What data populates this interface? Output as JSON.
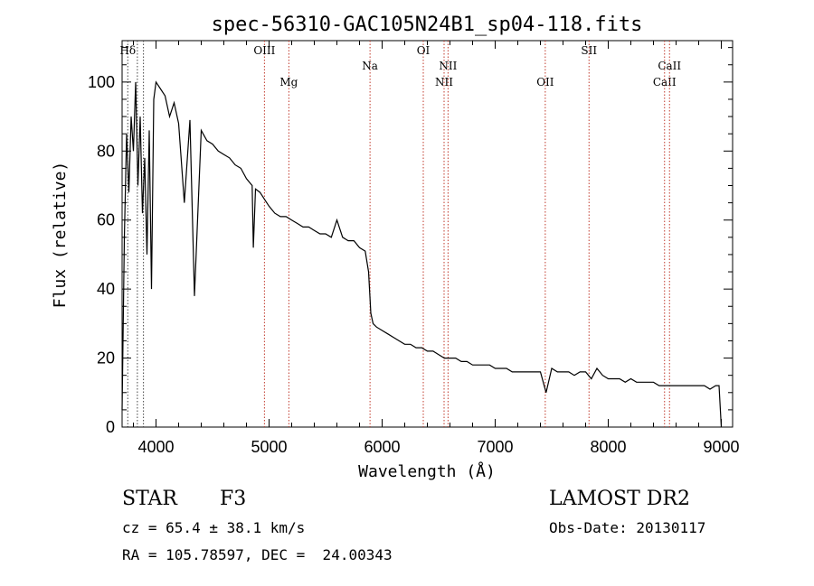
{
  "chart_data": {
    "type": "line",
    "title": "spec-56310-GAC105N24B1_sp04-118.fits",
    "xlabel": "Wavelength (Å)",
    "ylabel": "Flux (relative)",
    "xlim": [
      3700,
      9100
    ],
    "ylim": [
      0,
      112
    ],
    "xticks": [
      4000,
      5000,
      6000,
      7000,
      8000,
      9000
    ],
    "yticks": [
      0,
      20,
      40,
      60,
      80,
      100
    ],
    "grid": false,
    "series": [
      {
        "color": "#000000",
        "x": [
          3700,
          3720,
          3740,
          3760,
          3780,
          3800,
          3820,
          3840,
          3860,
          3880,
          3900,
          3920,
          3940,
          3960,
          3980,
          4000,
          4040,
          4080,
          4120,
          4160,
          4200,
          4250,
          4300,
          4340,
          4400,
          4450,
          4500,
          4550,
          4600,
          4650,
          4700,
          4750,
          4800,
          4850,
          4861,
          4880,
          4920,
          4960,
          5000,
          5050,
          5100,
          5150,
          5200,
          5250,
          5300,
          5350,
          5400,
          5450,
          5500,
          5550,
          5600,
          5650,
          5700,
          5750,
          5800,
          5850,
          5880,
          5900,
          5920,
          5950,
          6000,
          6050,
          6100,
          6150,
          6200,
          6250,
          6300,
          6350,
          6400,
          6450,
          6500,
          6550,
          6600,
          6650,
          6700,
          6750,
          6800,
          6850,
          6900,
          6950,
          7000,
          7050,
          7100,
          7150,
          7200,
          7250,
          7300,
          7350,
          7400,
          7450,
          7500,
          7550,
          7600,
          7650,
          7700,
          7750,
          7800,
          7850,
          7900,
          7950,
          8000,
          8050,
          8100,
          8150,
          8200,
          8250,
          8300,
          8350,
          8400,
          8450,
          8500,
          8550,
          8600,
          8650,
          8700,
          8750,
          8800,
          8850,
          8900,
          8950,
          8980,
          9000
        ],
        "y": [
          5,
          55,
          85,
          68,
          90,
          80,
          100,
          70,
          90,
          62,
          78,
          50,
          86,
          40,
          95,
          100,
          98,
          96,
          90,
          94,
          88,
          65,
          89,
          38,
          86,
          83,
          82,
          80,
          79,
          78,
          76,
          75,
          72,
          70,
          52,
          69,
          68,
          66,
          64,
          62,
          61,
          61,
          60,
          59,
          58,
          58,
          57,
          56,
          56,
          55,
          60,
          55,
          54,
          54,
          52,
          51,
          45,
          33,
          30,
          29,
          28,
          27,
          26,
          25,
          24,
          24,
          23,
          23,
          22,
          22,
          21,
          20,
          20,
          20,
          19,
          19,
          18,
          18,
          18,
          18,
          17,
          17,
          17,
          16,
          16,
          16,
          16,
          16,
          16,
          10,
          17,
          16,
          16,
          16,
          15,
          16,
          16,
          14,
          17,
          15,
          14,
          14,
          14,
          13,
          14,
          13,
          13,
          13,
          13,
          12,
          12,
          12,
          12,
          12,
          12,
          12,
          12,
          12,
          11,
          12,
          12,
          0
        ]
      }
    ],
    "lines": [
      {
        "x": 3750,
        "label": "Hδ",
        "level": "top"
      },
      {
        "x": 3835,
        "label": "",
        "level": ""
      },
      {
        "x": 3889,
        "label": "",
        "level": ""
      },
      {
        "x": 4959,
        "label": "OIII",
        "level": "top"
      },
      {
        "x": 5175,
        "label": "Mg",
        "level": "low"
      },
      {
        "x": 5893,
        "label": "Na",
        "level": "mid"
      },
      {
        "x": 6364,
        "label": "OI",
        "level": "top"
      },
      {
        "x": 6548,
        "label": "NII",
        "level": "low"
      },
      {
        "x": 6583,
        "label": "NII",
        "level": "mid"
      },
      {
        "x": 7443,
        "label": "OII",
        "level": "low"
      },
      {
        "x": 7830,
        "label": "SII",
        "level": "top"
      },
      {
        "x": 8498,
        "label": "CaII",
        "level": "low"
      },
      {
        "x": 8542,
        "label": "CaII",
        "level": "mid"
      }
    ]
  },
  "info": {
    "class_label": "STAR",
    "subclass": "F3",
    "survey": "LAMOST DR2",
    "cz": "cz = 65.4 ± 38.1 km/s",
    "obs_date": "Obs-Date: 20130117",
    "coords": "RA = 105.78597, DEC =  24.00343"
  }
}
